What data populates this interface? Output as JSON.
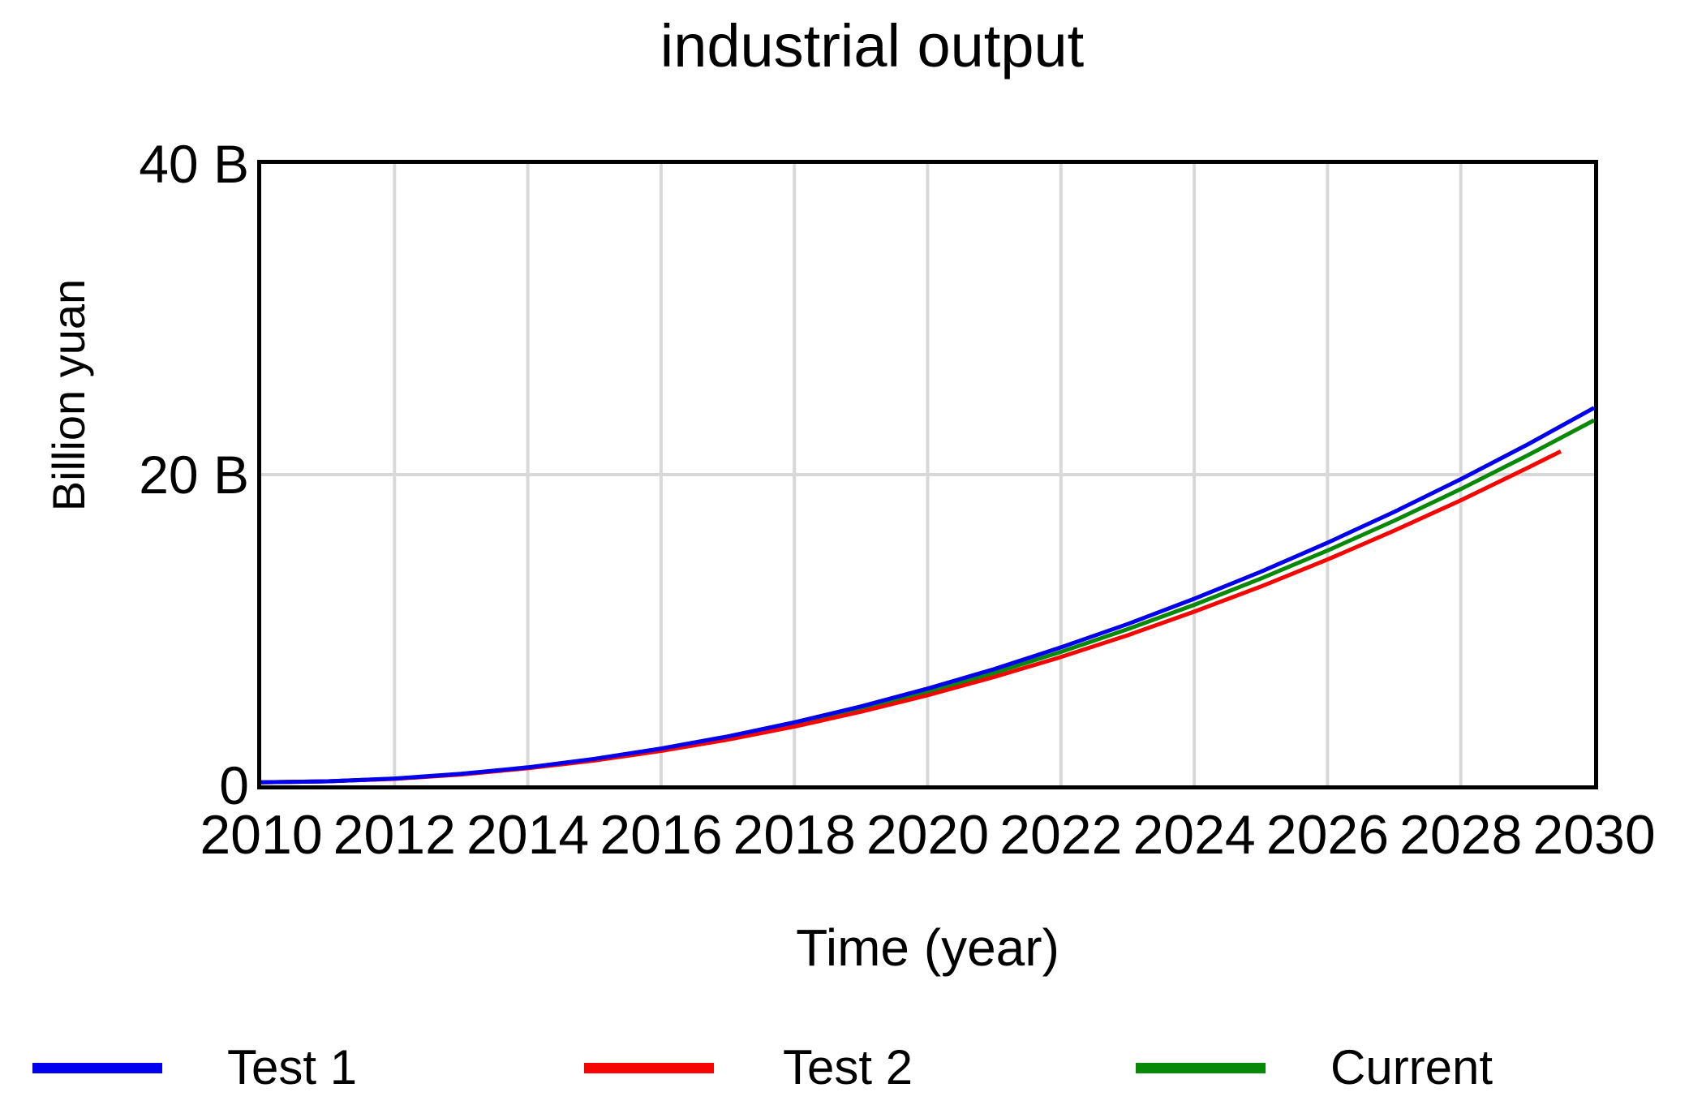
{
  "page": {
    "background": "#ffffff"
  },
  "chart_data": {
    "type": "line",
    "title": "industrial output",
    "xlabel": "Time (year)",
    "ylabel": "Billion yuan",
    "xlim": [
      2010,
      2030
    ],
    "ylim": [
      0,
      40
    ],
    "x_ticks": [
      2010,
      2012,
      2014,
      2016,
      2018,
      2020,
      2022,
      2024,
      2026,
      2028,
      2030
    ],
    "y_ticks": [
      {
        "value": 0,
        "label": "0"
      },
      {
        "value": 20,
        "label": "20 B"
      },
      {
        "value": 40,
        "label": "40 B"
      }
    ],
    "grid": {
      "vertical_years": [
        2012,
        2014,
        2016,
        2018,
        2020,
        2022,
        2024,
        2026,
        2028
      ],
      "horizontal_values": [
        20
      ],
      "color": "#d8d8d8"
    },
    "frame_color": "#000000",
    "legend_position": "bottom",
    "series": [
      {
        "name": "Test 1",
        "color": "#0000ee",
        "points": [
          [
            2010,
            0.2
          ],
          [
            2011,
            0.26
          ],
          [
            2012,
            0.44
          ],
          [
            2013,
            0.74
          ],
          [
            2014,
            1.16
          ],
          [
            2015,
            1.71
          ],
          [
            2016,
            2.37
          ],
          [
            2017,
            3.15
          ],
          [
            2018,
            4.06
          ],
          [
            2019,
            5.08
          ],
          [
            2020,
            6.23
          ],
          [
            2021,
            7.49
          ],
          [
            2022,
            8.88
          ],
          [
            2023,
            10.38
          ],
          [
            2024,
            12.01
          ],
          [
            2025,
            13.75
          ],
          [
            2026,
            15.62
          ],
          [
            2027,
            17.6
          ],
          [
            2028,
            19.71
          ],
          [
            2029,
            21.93
          ],
          [
            2030,
            24.3
          ]
        ]
      },
      {
        "name": "Test 2",
        "color": "#f50400",
        "points": [
          [
            2010,
            0.2
          ],
          [
            2011,
            0.26
          ],
          [
            2012,
            0.42
          ],
          [
            2013,
            0.7
          ],
          [
            2014,
            1.1
          ],
          [
            2015,
            1.6
          ],
          [
            2016,
            2.22
          ],
          [
            2017,
            2.94
          ],
          [
            2018,
            3.78
          ],
          [
            2019,
            4.74
          ],
          [
            2020,
            5.8
          ],
          [
            2021,
            6.98
          ],
          [
            2022,
            8.26
          ],
          [
            2023,
            9.66
          ],
          [
            2024,
            11.18
          ],
          [
            2025,
            12.8
          ],
          [
            2026,
            14.54
          ],
          [
            2027,
            16.39
          ],
          [
            2028,
            18.35
          ],
          [
            2029,
            20.43
          ],
          [
            2029.5,
            21.5
          ]
        ]
      },
      {
        "name": "Current",
        "color": "#078807",
        "points": [
          [
            2010,
            0.2
          ],
          [
            2011,
            0.26
          ],
          [
            2012,
            0.43
          ],
          [
            2013,
            0.72
          ],
          [
            2014,
            1.13
          ],
          [
            2015,
            1.66
          ],
          [
            2016,
            2.3
          ],
          [
            2017,
            3.05
          ],
          [
            2018,
            3.93
          ],
          [
            2019,
            4.92
          ],
          [
            2020,
            6.03
          ],
          [
            2021,
            7.25
          ],
          [
            2022,
            8.59
          ],
          [
            2023,
            10.05
          ],
          [
            2024,
            11.62
          ],
          [
            2025,
            13.31
          ],
          [
            2026,
            15.11
          ],
          [
            2027,
            17.03
          ],
          [
            2028,
            19.07
          ],
          [
            2029,
            21.23
          ],
          [
            2030,
            23.5
          ]
        ]
      }
    ]
  }
}
